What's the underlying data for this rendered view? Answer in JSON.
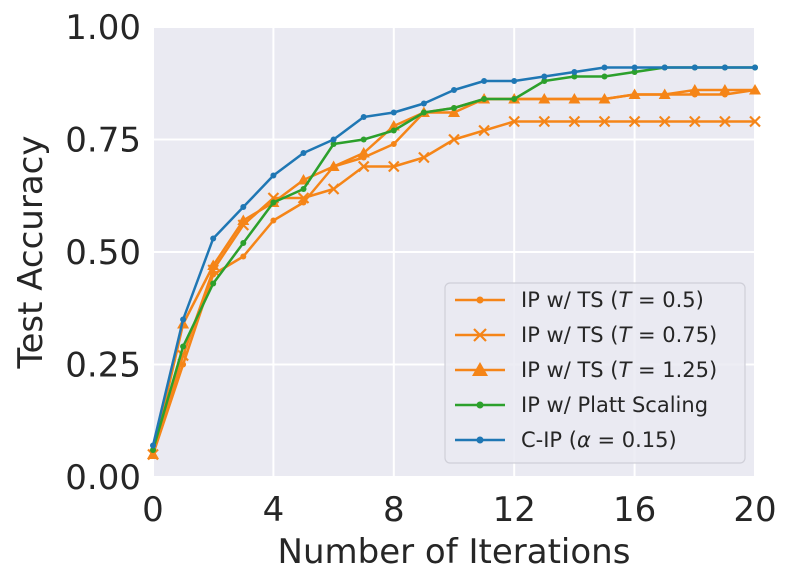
{
  "chart_data": {
    "type": "line",
    "title": "",
    "xlabel": "Number of Iterations",
    "ylabel": "Test Accuracy",
    "xlim": [
      0,
      20
    ],
    "ylim": [
      0,
      1
    ],
    "xticks": [
      0,
      4,
      8,
      12,
      16,
      20
    ],
    "xtick_labels": [
      "0",
      "4",
      "8",
      "12",
      "16",
      "20"
    ],
    "yticks": [
      0,
      0.25,
      0.5,
      0.75,
      1.0
    ],
    "ytick_labels": [
      "0.00",
      "0.25",
      "0.50",
      "0.75",
      "1.00"
    ],
    "grid": true,
    "legend_position": "lower-right",
    "x": [
      0,
      1,
      2,
      3,
      4,
      5,
      6,
      7,
      8,
      9,
      10,
      11,
      12,
      13,
      14,
      15,
      16,
      17,
      18,
      19,
      20
    ],
    "series": [
      {
        "name": "IP w/ TS (T = 0.5)",
        "legend_prefix": "IP w/ TS (",
        "legend_var": "T",
        "legend_suffix": " = 0.5)",
        "color": "#f58518",
        "marker": "dot",
        "values": [
          0.05,
          0.25,
          0.45,
          0.49,
          0.57,
          0.61,
          0.69,
          0.71,
          0.74,
          0.81,
          0.82,
          0.84,
          0.84,
          0.84,
          0.84,
          0.84,
          0.85,
          0.85,
          0.85,
          0.85,
          0.86
        ]
      },
      {
        "name": "IP w/ TS (T = 0.75)",
        "legend_prefix": "IP w/ TS (",
        "legend_var": "T",
        "legend_suffix": " = 0.75)",
        "color": "#f58518",
        "marker": "x",
        "values": [
          0.05,
          0.27,
          0.46,
          0.56,
          0.62,
          0.62,
          0.64,
          0.69,
          0.69,
          0.71,
          0.75,
          0.77,
          0.79,
          0.79,
          0.79,
          0.79,
          0.79,
          0.79,
          0.79,
          0.79,
          0.79
        ]
      },
      {
        "name": "IP w/ TS (T = 1.25)",
        "legend_prefix": "IP w/ TS (",
        "legend_var": "T",
        "legend_suffix": " = 1.25)",
        "color": "#f58518",
        "marker": "triangle",
        "values": [
          0.05,
          0.34,
          0.47,
          0.57,
          0.61,
          0.66,
          0.69,
          0.72,
          0.78,
          0.81,
          0.81,
          0.84,
          0.84,
          0.84,
          0.84,
          0.84,
          0.85,
          0.85,
          0.86,
          0.86,
          0.86
        ]
      },
      {
        "name": "IP w/ Platt Scaling",
        "legend_prefix": "IP w/ Platt Scaling",
        "legend_var": "",
        "legend_suffix": "",
        "color": "#2ca02c",
        "marker": "dot",
        "values": [
          0.06,
          0.29,
          0.43,
          0.52,
          0.61,
          0.64,
          0.74,
          0.75,
          0.77,
          0.81,
          0.82,
          0.84,
          0.84,
          0.88,
          0.89,
          0.89,
          0.9,
          0.91,
          0.91,
          0.91,
          0.91
        ]
      },
      {
        "name": "C-IP (α = 0.15)",
        "legend_prefix": "C-IP (",
        "legend_var": "α",
        "legend_suffix": " = 0.15)",
        "color": "#1f77b4",
        "marker": "dot",
        "values": [
          0.07,
          0.35,
          0.53,
          0.6,
          0.67,
          0.72,
          0.75,
          0.8,
          0.81,
          0.83,
          0.86,
          0.88,
          0.88,
          0.89,
          0.9,
          0.91,
          0.91,
          0.91,
          0.91,
          0.91,
          0.91
        ]
      }
    ]
  }
}
